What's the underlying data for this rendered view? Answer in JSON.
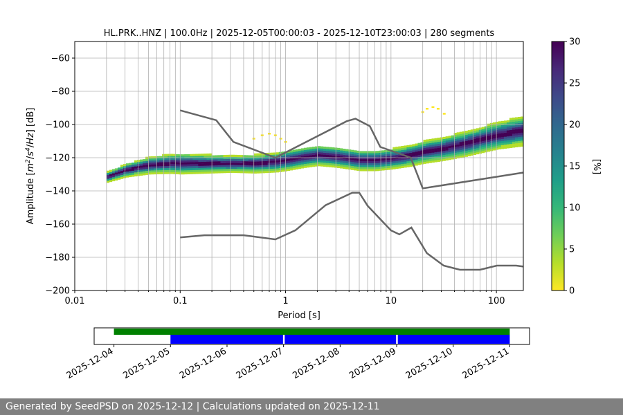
{
  "footer": {
    "text": "Generated by SeedPSD on 2025-12-12 | Calculations updated on 2025-12-11"
  },
  "chart_data": {
    "type": "heatmap",
    "title": "HL.PRK..HNZ | 100.0Hz | 2025-12-05T00:00:03 - 2025-12-10T23:00:03 | 280 segments",
    "xlabel": "Period [s]",
    "ylabel_parts": [
      "Amplitude [",
      "m",
      "2",
      "/",
      "s",
      "4",
      "/",
      "Hz",
      "] [dB]"
    ],
    "xscale": "log",
    "xlim": [
      0.01,
      180
    ],
    "ylim": [
      -200,
      -50
    ],
    "xticks": [
      0.01,
      0.1,
      1,
      10,
      100
    ],
    "xtick_labels": [
      "0.01",
      "0.1",
      "1",
      "10",
      "100"
    ],
    "yticks": [
      -200,
      -180,
      -160,
      -140,
      -120,
      -100,
      -80,
      -60
    ],
    "ytick_labels": [
      "−200",
      "−180",
      "−160",
      "−140",
      "−120",
      "−100",
      "−80",
      "−60"
    ],
    "grid": true,
    "colorbar": {
      "label": "[%]",
      "min": 0,
      "max": 30,
      "ticks": [
        0,
        5,
        10,
        15,
        20,
        25,
        30
      ],
      "colormap": "viridis_r",
      "stops": [
        "#fde725",
        "#b5de2b",
        "#6ece58",
        "#35b779",
        "#1f9e89",
        "#26828e",
        "#31688e",
        "#3e4989",
        "#482878",
        "#440154"
      ]
    },
    "psd_mode": {
      "period_s": [
        0.02,
        0.03,
        0.05,
        0.08,
        0.1,
        0.15,
        0.2,
        0.3,
        0.5,
        0.8,
        1.0,
        1.5,
        2,
        3,
        5,
        7,
        10,
        15,
        20,
        30,
        50,
        100,
        180
      ],
      "db": [
        -132,
        -128,
        -125,
        -124,
        -124,
        -124,
        -124,
        -124,
        -124,
        -123,
        -122,
        -120,
        -119,
        -120,
        -122,
        -122,
        -121,
        -119,
        -117,
        -115,
        -112,
        -107,
        -104
      ]
    },
    "psd_spread_db": {
      "period_s": [
        0.02,
        0.05,
        0.1,
        0.3,
        1.0,
        3,
        10,
        30,
        100,
        180
      ],
      "half_width": [
        3,
        5,
        6,
        5,
        6,
        6,
        6,
        7,
        8,
        9
      ]
    },
    "psd_outliers": {
      "period_s": [
        0.5,
        0.6,
        0.7,
        0.8,
        0.9,
        1.0,
        20,
        22,
        25,
        28,
        32
      ],
      "db": [
        -108,
        -106,
        -105,
        -106,
        -108,
        -110,
        -92,
        -90,
        -89,
        -90,
        -93
      ]
    },
    "nhnm": {
      "color": "#666666",
      "period_s": [
        0.1,
        0.22,
        0.32,
        0.8,
        3.8,
        4.6,
        6.3,
        7.9,
        15.4,
        20,
        354.8
      ],
      "db": [
        -91.5,
        -97.4,
        -110.5,
        -120.0,
        -98.0,
        -96.5,
        -101.0,
        -113.5,
        -120.0,
        -138.5,
        -126.0
      ]
    },
    "nlnm": {
      "color": "#666666",
      "period_s": [
        0.1,
        0.17,
        0.4,
        0.8,
        1.24,
        2.4,
        4.3,
        5.0,
        6.0,
        10.0,
        12.0,
        15.6,
        21.9,
        31.6,
        45.0,
        70.0,
        101.0,
        154.0,
        180
      ],
      "db": [
        -168.0,
        -166.7,
        -166.7,
        -169.2,
        -163.7,
        -148.6,
        -141.1,
        -141.1,
        -149.0,
        -163.8,
        -166.2,
        -162.1,
        -177.5,
        -185.0,
        -187.5,
        -187.5,
        -185.0,
        -185.0,
        -185.6
      ]
    },
    "timeline": {
      "ticks": [
        "2025-12-04",
        "2025-12-05",
        "2025-12-06",
        "2025-12-07",
        "2025-12-08",
        "2025-12-09",
        "2025-12-10",
        "2025-12-11"
      ],
      "xlim_days": [
        -0.35,
        7.35
      ],
      "availability": {
        "color": "#008000",
        "start_day": 0,
        "end_day": 7
      },
      "processed": {
        "color": "#0000ff",
        "segments": [
          [
            1,
            2.99
          ],
          [
            3.02,
            4.99
          ],
          [
            5.02,
            7
          ]
        ]
      }
    }
  }
}
